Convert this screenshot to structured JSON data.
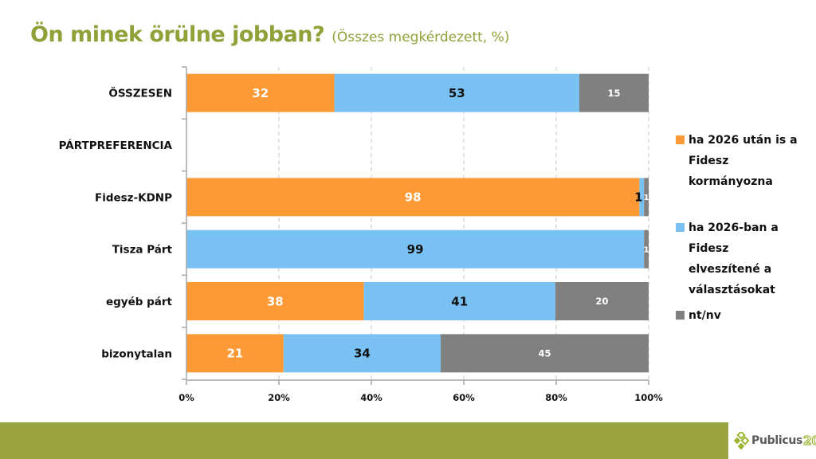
{
  "header": {
    "title": "Ön minek örülne jobban?",
    "subtitle": "(Összes megkérdezett, %)"
  },
  "colors": {
    "orange": "#FD9A35",
    "blue": "#79C0F3",
    "gray": "#808080",
    "brand_green": "#99A33F",
    "title_green": "#8FA23A"
  },
  "chart_data": {
    "type": "bar",
    "orientation": "horizontal",
    "stacked": "100%",
    "title": "Ön minek örülne jobban?",
    "subtitle": "(Összes megkérdezett, %)",
    "categories": [
      "ÖSSZESEN",
      "PÁRTPREFERENCIA",
      "Fidesz-KDNP",
      "Tisza Párt",
      "egyéb párt",
      "bizonytalan"
    ],
    "series": [
      {
        "name": "ha 2026 után is a Fidesz kormányozna",
        "color": "#FD9A35",
        "label_color": "#ffffff",
        "values": [
          32,
          null,
          98,
          0,
          38,
          21
        ]
      },
      {
        "name": "ha 2026-ban a Fidesz elveszítené a választásokat",
        "color": "#79C0F3",
        "label_color": "#111111",
        "values": [
          53,
          null,
          1,
          99,
          41,
          34
        ]
      },
      {
        "name": "nt/nv",
        "color": "#808080",
        "label_color": "#ffffff",
        "values": [
          15,
          null,
          1,
          1,
          20,
          45
        ]
      }
    ],
    "xlim": [
      0,
      100
    ],
    "x_ticks": [
      "0%",
      "20%",
      "40%",
      "60%",
      "80%",
      "100%"
    ],
    "x_tick_values": [
      0,
      20,
      40,
      60,
      80,
      100
    ],
    "grid": "vertical dashed",
    "legend_position": "right"
  },
  "legend": {
    "items": [
      {
        "label": "ha 2026 után is a Fidesz kormányozna",
        "lines": [
          "ha 2026 után is a",
          "Fidesz",
          "kormányozna"
        ],
        "color": "#FD9A35"
      },
      {
        "label": "ha 2026-ban a Fidesz elveszítené a választásokat",
        "lines": [
          "ha 2026-ban a",
          "Fidesz",
          "elveszítené a",
          "választásokat"
        ],
        "color": "#79C0F3"
      },
      {
        "label": "nt/nv",
        "lines": [
          "nt/nv"
        ],
        "color": "#808080"
      }
    ]
  },
  "footer": {
    "logo_text": "Publicus",
    "logo_number": "20"
  }
}
